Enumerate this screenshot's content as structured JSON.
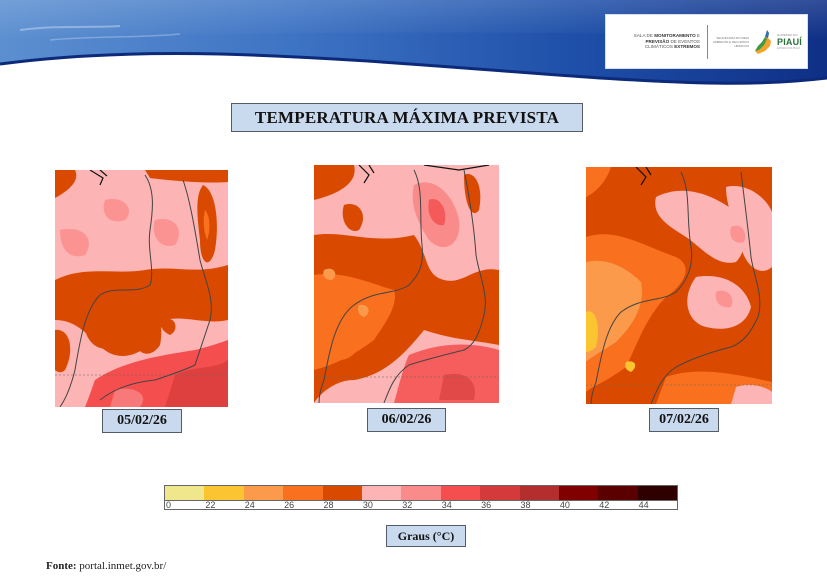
{
  "header": {
    "logo": {
      "line1_pre": "SALA DE ",
      "line1_bold": "MONITORAMENTO",
      "line1_post": " E",
      "line2_bold": "PREVISÃO",
      "line2_post": " DE EVENTOS",
      "line3_pre": "CLIMÁTICOS ",
      "line3_bold": "EXTREMOS",
      "secretaria": "SECRETARIA DO MEIO AMBIENTE E RECURSOS HÍDRICOS",
      "gov_label": "GOVERNO DO",
      "state_name": "PIAUÍ",
      "state_sub": "ESTADO DO PIAUÍ"
    }
  },
  "title": "TEMPERATURA MÁXIMA PREVISTA",
  "maps": [
    {
      "date": "05/02/26"
    },
    {
      "date": "06/02/26"
    },
    {
      "date": "07/02/26"
    }
  ],
  "legend": {
    "unit_label": "Graus (°C)",
    "colors": [
      "#f0e68c",
      "#fbc531",
      "#fb9a4b",
      "#f9701e",
      "#d94a00",
      "#fcb4b4",
      "#fa8b8b",
      "#f44e4e",
      "#d43a3a",
      "#b52e2e",
      "#800000",
      "#5a0000",
      "#2e0000"
    ],
    "ticks": [
      "0",
      "22",
      "24",
      "26",
      "28",
      "30",
      "32",
      "34",
      "36",
      "38",
      "40",
      "42",
      "44"
    ]
  },
  "source": {
    "label": "Fonte:",
    "value": "portal.inmet.gov.br/"
  },
  "chart_data": {
    "type": "heatmap",
    "title": "TEMPERATURA MÁXIMA PREVISTA",
    "panels": [
      "05/02/26",
      "06/02/26",
      "07/02/26"
    ],
    "colorbar": {
      "label": "Graus (°C)",
      "ticks": [
        0,
        22,
        24,
        26,
        28,
        30,
        32,
        34,
        36,
        38,
        40,
        42,
        44
      ],
      "colors": [
        "#f0e68c",
        "#fbc531",
        "#fb9a4b",
        "#f9701e",
        "#d94a00",
        "#fcb4b4",
        "#fa8b8b",
        "#f44e4e",
        "#d43a3a",
        "#b52e2e",
        "#800000",
        "#5a0000",
        "#2e0000"
      ]
    },
    "dominant_ranges": {
      "05/02/26": "28-34 °C (mostly 30-32 with 28-30 band in center; 32-36 in south)",
      "06/02/26": "26-34 °C (26-30 in southwest; 30-34 in north/east)",
      "07/02/26": "22-32 °C (22-28 in west; 28-32 in east)"
    }
  }
}
